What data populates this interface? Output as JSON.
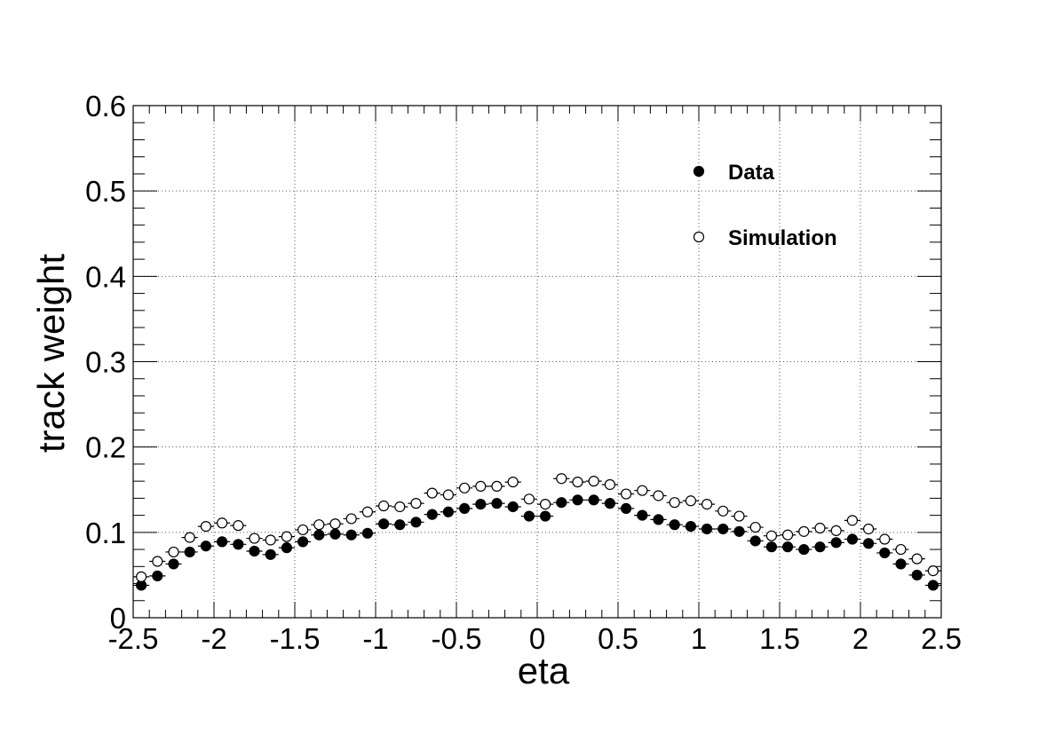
{
  "chart_data": {
    "type": "scatter",
    "xlabel": "eta",
    "ylabel": "track weight",
    "xlim": [
      -2.5,
      2.5
    ],
    "ylim": [
      0,
      0.6
    ],
    "x_ticks": [
      "-2.5",
      "-2",
      "-1.5",
      "-1",
      "-0.5",
      "0",
      "0.5",
      "1",
      "1.5",
      "2",
      "2.5"
    ],
    "x_tick_values": [
      -2.5,
      -2,
      -1.5,
      -1,
      -0.5,
      0,
      0.5,
      1,
      1.5,
      2,
      2.5
    ],
    "y_ticks": [
      "0",
      "0.1",
      "0.2",
      "0.3",
      "0.4",
      "0.5",
      "0.6"
    ],
    "y_tick_values": [
      0,
      0.1,
      0.2,
      0.3,
      0.4,
      0.5,
      0.6
    ],
    "grid": true,
    "legend_position": "top-right",
    "x": [
      -2.45,
      -2.35,
      -2.25,
      -2.15,
      -2.05,
      -1.95,
      -1.85,
      -1.75,
      -1.65,
      -1.55,
      -1.45,
      -1.35,
      -1.25,
      -1.15,
      -1.05,
      -0.95,
      -0.85,
      -0.75,
      -0.65,
      -0.55,
      -0.45,
      -0.35,
      -0.25,
      -0.15,
      -0.05,
      0.05,
      0.15,
      0.25,
      0.35,
      0.45,
      0.55,
      0.65,
      0.75,
      0.85,
      0.95,
      1.05,
      1.15,
      1.25,
      1.35,
      1.45,
      1.55,
      1.65,
      1.75,
      1.85,
      1.95,
      2.05,
      2.15,
      2.25,
      2.35,
      2.45
    ],
    "series": [
      {
        "name": "Data",
        "marker": "filled-circle",
        "values": [
          0.038,
          0.049,
          0.063,
          0.077,
          0.084,
          0.089,
          0.086,
          0.078,
          0.074,
          0.082,
          0.089,
          0.097,
          0.098,
          0.097,
          0.099,
          0.11,
          0.109,
          0.112,
          0.121,
          0.124,
          0.128,
          0.133,
          0.134,
          0.13,
          0.119,
          0.119,
          0.135,
          0.138,
          0.138,
          0.134,
          0.128,
          0.12,
          0.115,
          0.109,
          0.107,
          0.104,
          0.104,
          0.101,
          0.09,
          0.083,
          0.083,
          0.08,
          0.083,
          0.088,
          0.092,
          0.087,
          0.076,
          0.063,
          0.05,
          0.038
        ]
      },
      {
        "name": "Simulation",
        "marker": "open-circle",
        "values": [
          0.048,
          0.066,
          0.077,
          0.094,
          0.107,
          0.111,
          0.108,
          0.093,
          0.091,
          0.095,
          0.103,
          0.109,
          0.11,
          0.116,
          0.124,
          0.131,
          0.13,
          0.134,
          0.146,
          0.144,
          0.152,
          0.154,
          0.154,
          0.159,
          0.139,
          0.133,
          0.163,
          0.159,
          0.16,
          0.156,
          0.145,
          0.149,
          0.143,
          0.135,
          0.137,
          0.133,
          0.125,
          0.119,
          0.106,
          0.096,
          0.097,
          0.101,
          0.105,
          0.102,
          0.114,
          0.104,
          0.092,
          0.08,
          0.069,
          0.055
        ]
      }
    ]
  }
}
